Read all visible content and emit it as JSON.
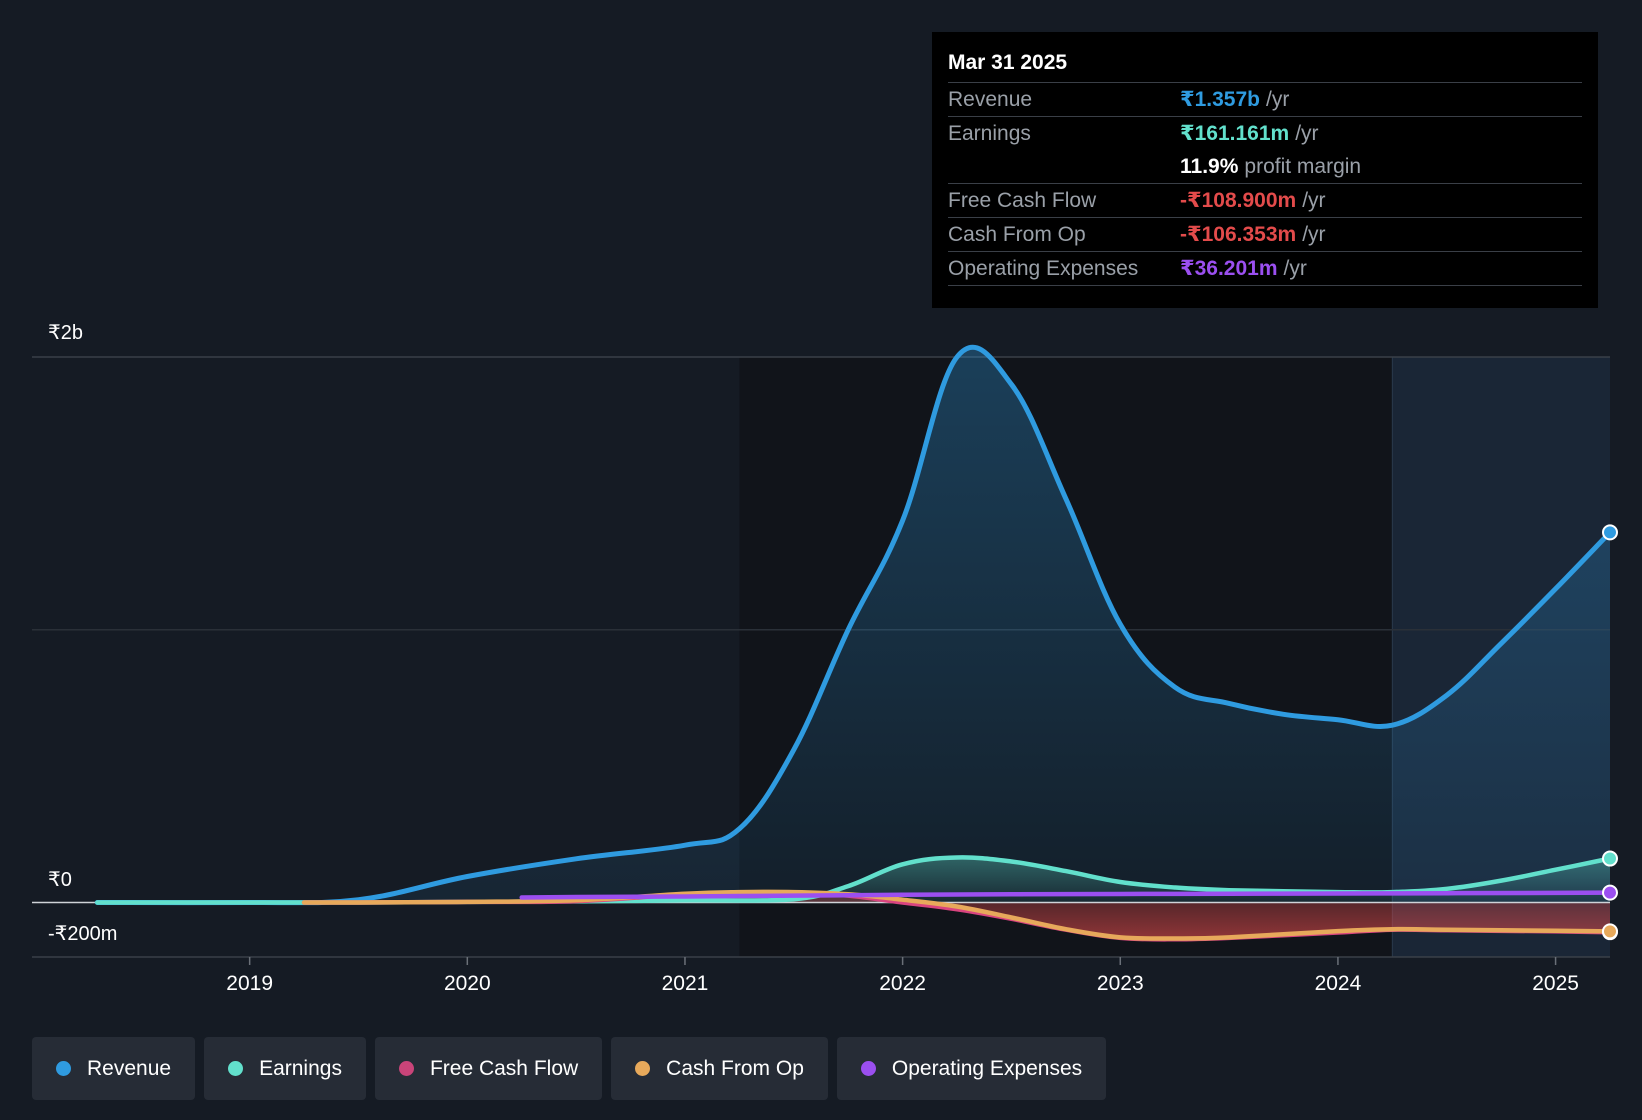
{
  "colors": {
    "revenue": "#2f9be0",
    "earnings": "#62e0cc",
    "free_cash_flow": "#d9447f",
    "cash_from_op": "#e7a95b",
    "operating_expenses": "#9b4ff0",
    "negative": "#e34b4b"
  },
  "tooltip": {
    "date": "Mar 31 2025",
    "rows": [
      {
        "label": "Revenue",
        "value": "₹1.357b",
        "unit": "/yr"
      },
      {
        "label": "Earnings",
        "value": "₹161.161m",
        "unit": "/yr"
      },
      {
        "label": "",
        "value": "11.9%",
        "unit": "profit margin"
      },
      {
        "label": "Free Cash Flow",
        "value": "-₹108.900m",
        "unit": "/yr"
      },
      {
        "label": "Cash From Op",
        "value": "-₹106.353m",
        "unit": "/yr"
      },
      {
        "label": "Operating Expenses",
        "value": "₹36.201m",
        "unit": "/yr"
      }
    ]
  },
  "legend": [
    {
      "label": "Revenue",
      "key": "revenue"
    },
    {
      "label": "Earnings",
      "key": "earnings"
    },
    {
      "label": "Free Cash Flow",
      "key": "free_cash_flow"
    },
    {
      "label": "Cash From Op",
      "key": "cash_from_op"
    },
    {
      "label": "Operating Expenses",
      "key": "operating_expenses"
    }
  ],
  "chart_data": {
    "type": "line",
    "y_tick_labels": [
      "₹2b",
      "₹0",
      "-₹200m"
    ],
    "y_ticks": [
      2000,
      0,
      -200
    ],
    "ylim": [
      -200,
      2000
    ],
    "xlim": [
      2018.0,
      2025.25
    ],
    "x_tick_labels": [
      "2019",
      "2020",
      "2021",
      "2022",
      "2023",
      "2024",
      "2025"
    ],
    "x_ticks": [
      2019,
      2020,
      2021,
      2022,
      2023,
      2024,
      2025
    ],
    "grid": true,
    "legend_position": "bottom",
    "forecast_shade_start": 2024.25,
    "series": [
      {
        "name": "Revenue",
        "key": "revenue",
        "x": [
          2018.3,
          2019.0,
          2019.5,
          2020.0,
          2020.5,
          2021.0,
          2021.25,
          2021.5,
          2021.75,
          2022.0,
          2022.25,
          2022.5,
          2022.75,
          2023.0,
          2023.25,
          2023.5,
          2023.75,
          2024.0,
          2024.25,
          2024.5,
          2024.75,
          2025.0,
          2025.25
        ],
        "y": [
          0,
          0,
          10,
          95,
          160,
          210,
          270,
          560,
          1000,
          1400,
          2000,
          1900,
          1480,
          1020,
          790,
          730,
          690,
          670,
          650,
          760,
          950,
          1150,
          1357
        ]
      },
      {
        "name": "Earnings",
        "key": "earnings",
        "x": [
          2018.3,
          2019.0,
          2019.5,
          2020.0,
          2020.5,
          2021.0,
          2021.5,
          2021.75,
          2022.0,
          2022.25,
          2022.5,
          2022.75,
          2023.0,
          2023.25,
          2023.5,
          2024.0,
          2024.25,
          2024.5,
          2024.75,
          2025.0,
          2025.25
        ],
        "y": [
          0,
          0,
          0,
          2,
          4,
          8,
          12,
          60,
          140,
          165,
          150,
          115,
          75,
          55,
          45,
          38,
          38,
          50,
          80,
          120,
          161
        ]
      },
      {
        "name": "Free Cash Flow",
        "key": "free_cash_flow",
        "x": [
          2019.25,
          2019.5,
          2020.0,
          2020.5,
          2021.0,
          2021.25,
          2021.5,
          2021.75,
          2022.0,
          2022.25,
          2022.5,
          2022.75,
          2023.0,
          2023.25,
          2023.5,
          2024.0,
          2024.25,
          2024.5,
          2025.0,
          2025.25
        ],
        "y": [
          0,
          0,
          2,
          5,
          30,
          35,
          35,
          25,
          0,
          -25,
          -60,
          -100,
          -130,
          -135,
          -130,
          -110,
          -100,
          -102,
          -106,
          -109
        ]
      },
      {
        "name": "Cash From Op",
        "key": "cash_from_op",
        "x": [
          2019.25,
          2019.5,
          2020.0,
          2020.5,
          2021.0,
          2021.25,
          2021.5,
          2021.75,
          2022.0,
          2022.25,
          2022.5,
          2022.75,
          2023.0,
          2023.25,
          2023.5,
          2024.0,
          2024.25,
          2024.5,
          2025.0,
          2025.25
        ],
        "y": [
          0,
          0,
          2,
          8,
          32,
          38,
          38,
          30,
          10,
          -15,
          -55,
          -98,
          -128,
          -132,
          -128,
          -105,
          -98,
          -100,
          -104,
          -106
        ]
      },
      {
        "name": "Operating Expenses",
        "key": "operating_expenses",
        "x": [
          2020.25,
          2020.5,
          2021.0,
          2021.5,
          2022.0,
          2022.5,
          2023.0,
          2023.5,
          2024.0,
          2024.5,
          2025.0,
          2025.25
        ],
        "y": [
          18,
          20,
          22,
          25,
          28,
          30,
          31,
          32,
          33,
          34,
          35,
          36
        ]
      }
    ]
  }
}
